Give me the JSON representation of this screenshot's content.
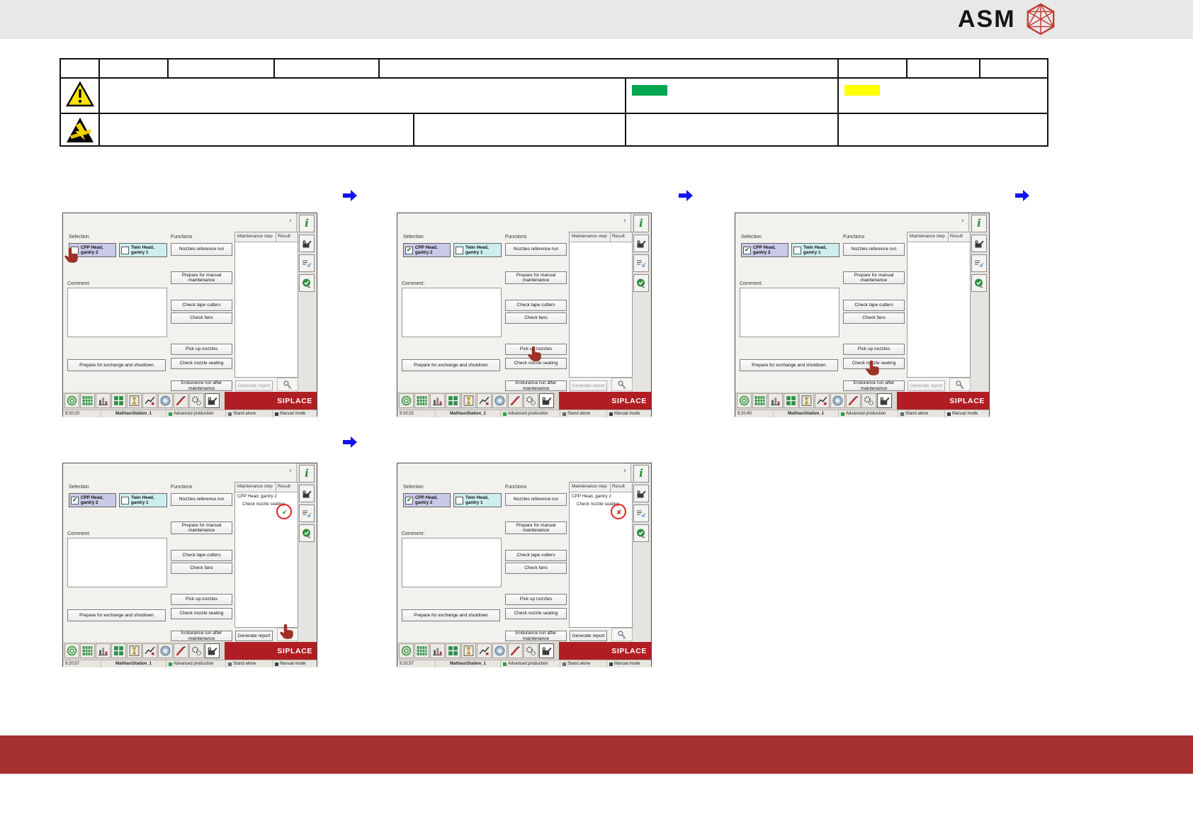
{
  "page": {
    "logo_text": "ASM",
    "footer_color": "#a53230",
    "header_color": "#e8e8e8"
  },
  "warning_table": {
    "row2_icon": "warning-triangle-icon",
    "row3_icon": "esd-warning-icon",
    "green_swatch_color": "#00a551",
    "yellow_swatch_color": "#ffff00"
  },
  "flow_arrows": {
    "color": "#1414f0",
    "count": 4
  },
  "siplace_ui": {
    "selection_label": "Selection",
    "head_option_1": "CPP Head, gantry 2",
    "head_option_2": "Twin Head, gantry 1",
    "comment_label": "Comment:",
    "prepare_exchange_button": "Prepare for exchange and shutdown",
    "functions_label": "Functions",
    "function_buttons": [
      "Nozzles reference run",
      "Prepare for manual maintenance",
      "Check tape cutters",
      "Check fans",
      "Pick up nozzles",
      "Check nozzle seating"
    ],
    "maintenance_step_label": "Maintenance step",
    "result_label": "Result",
    "endurance_button": "Endurance run after maintenance",
    "generate_report_button": "Generate report",
    "brand": "SIPLACE",
    "check_glyph": "✔",
    "result_pass_glyph": "✔",
    "result_fail_glyph": "✘",
    "statusbar": {
      "user": "Mathias\\Station_1",
      "production_mode": "Advanced production",
      "connection_mode": "Stand alone",
      "operating_mode": "Manual mode"
    },
    "sidebar_icons": [
      "info-icon",
      "oilcan-icon",
      "maintenance-plan-icon",
      "confirm-maintenance-icon"
    ],
    "taskbar_icons": [
      "production-icon",
      "feeder-table-icon",
      "statistics-icon",
      "component-icon",
      "setup-icon",
      "diagram-icon",
      "vision-icon",
      "repair-icon",
      "settings-gears-icon",
      "maintenance-oilcan-icon"
    ]
  },
  "screens": [
    {
      "name": "select-head",
      "time": "9:20:20",
      "head1_checked": false,
      "hand_target": "head1-checkbox",
      "maintenance": null,
      "generate_report_enabled": false
    },
    {
      "name": "pick-up-nozzles",
      "time": "9:20:22",
      "head1_checked": true,
      "hand_target": "pick-up-nozzles-button",
      "maintenance": null,
      "generate_report_enabled": false
    },
    {
      "name": "check-nozzle-seating",
      "time": "9:20:40",
      "head1_checked": true,
      "hand_target": "check-nozzle-seating-button",
      "maintenance": null,
      "generate_report_enabled": false
    },
    {
      "name": "result-pass",
      "time": "9:20:57",
      "head1_checked": true,
      "hand_target": "report-button",
      "maintenance": {
        "group": "CPP Head, gantry 2",
        "step": "Check nozzle seating",
        "result": "pass"
      },
      "generate_report_enabled": true
    },
    {
      "name": "result-fail",
      "time": "9:20:57",
      "head1_checked": true,
      "hand_target": null,
      "maintenance": {
        "group": "CPP Head, gantry 2",
        "step": "Check nozzle seating",
        "result": "fail"
      },
      "generate_report_enabled": true
    }
  ]
}
